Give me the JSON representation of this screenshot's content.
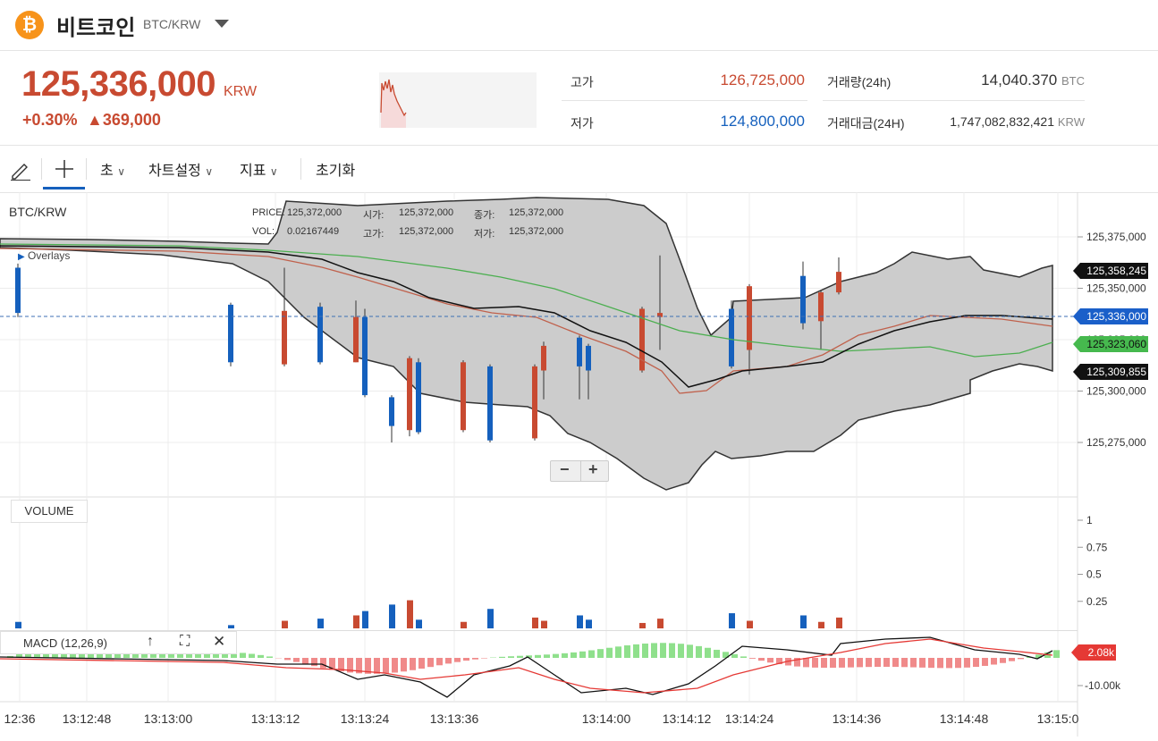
{
  "coin": {
    "icon": "bitcoin-icon",
    "logo_text": "₿",
    "name": "비트코인",
    "pair": "BTC/KRW"
  },
  "price": {
    "current": "125,336,000",
    "unit": "KRW",
    "change_pct": "+0.30%",
    "change_amount": "▲369,000"
  },
  "stats": {
    "high_label": "고가",
    "high_value": "126,725,000",
    "low_label": "저가",
    "low_value": "124,800,000",
    "volume_label": "거래량(24h)",
    "volume_value": "14,040.370",
    "volume_unit": "BTC",
    "turnover_label": "거래대금(24H)",
    "turnover_value": "1,747,082,832,421",
    "turnover_unit": "KRW"
  },
  "toolbar": {
    "draw_icon": "pencil-icon",
    "crosshair_icon": "crosshair-icon",
    "interval": "초",
    "chart_settings": "차트설정",
    "indicators": "지표",
    "reset": "초기화"
  },
  "colors": {
    "up": "#c84a31",
    "down": "#1560bd",
    "ma": "#4caf50",
    "bb_fill": "#cccccc"
  },
  "legend": {
    "pair": "BTC/KRW",
    "price_label": "PRICE:",
    "price_value": "125,372,000",
    "open_label": "시가:",
    "open_value": "125,372,000",
    "close_label": "종가:",
    "close_value": "125,372,000",
    "vol_label": "VOL:",
    "vol_value": "0.02167449",
    "high_label": "고가:",
    "high_value": "125,372,000",
    "low_label": "저가:",
    "low_value": "125,372,000",
    "overlays": "Overlays"
  },
  "zoom": {
    "minus": "−",
    "plus": "+"
  },
  "volume_panel": {
    "title": "VOLUME"
  },
  "macd_panel": {
    "title": "MACD (12,26,9)"
  },
  "badges": {
    "p1": "125,358,245",
    "p2": "125,336,000",
    "p3": "125,323,060",
    "p4": "125,309,855",
    "macd": "2.08k"
  },
  "chart_data": {
    "type": "candlestick",
    "price_axis": {
      "ticks": [
        "125,375,000",
        "125,350,000",
        "125,325,000",
        "125,300,000",
        "125,275,000"
      ],
      "tick_values": [
        125375000,
        125350000,
        125325000,
        125300000,
        125275000
      ]
    },
    "volume_axis": {
      "ticks": [
        "1",
        "0.75",
        "0.5",
        "0.25"
      ],
      "tick_values": [
        1,
        0.75,
        0.5,
        0.25
      ]
    },
    "macd_axis": {
      "ticks": [
        "-10.00k"
      ],
      "tick_values": [
        -10000
      ]
    },
    "time_ticks": [
      "12:36",
      "13:12:48",
      "13:13:00",
      "13:13:12",
      "13:13:24",
      "13:13:36",
      "13:14:00",
      "13:14:12",
      "13:14:24",
      "13:14:36",
      "13:14:48",
      "13:15:0"
    ],
    "candles": [
      {
        "o": 125360000,
        "c": 125338000,
        "h": 125362000,
        "l": 125336000,
        "v": 0.06,
        "d": 0
      },
      {
        "o": 125342000,
        "c": 125314000,
        "h": 125343000,
        "l": 125312000,
        "v": 0.03,
        "d": 0
      },
      {
        "o": 125313000,
        "c": 125339000,
        "h": 125360000,
        "l": 125312000,
        "v": 0.07,
        "d": 1
      },
      {
        "o": 125341000,
        "c": 125314000,
        "h": 125343000,
        "l": 125313000,
        "v": 0.09,
        "d": 0
      },
      {
        "o": 125314000,
        "c": 125336000,
        "h": 125344000,
        "l": 125314000,
        "v": 0.12,
        "d": 1
      },
      {
        "o": 125336000,
        "c": 125298000,
        "h": 125340000,
        "l": 125297000,
        "v": 0.16,
        "d": 0
      },
      {
        "o": 125297000,
        "c": 125283000,
        "h": 125298000,
        "l": 125275000,
        "v": 0.22,
        "d": 0
      },
      {
        "o": 125281000,
        "c": 125316000,
        "h": 125317000,
        "l": 125278000,
        "v": 0.26,
        "d": 1
      },
      {
        "o": 125314000,
        "c": 125280000,
        "h": 125316000,
        "l": 125279000,
        "v": 0.08,
        "d": 0
      },
      {
        "o": 125281000,
        "c": 125314000,
        "h": 125315000,
        "l": 125280000,
        "v": 0.06,
        "d": 1
      },
      {
        "o": 125312000,
        "c": 125276000,
        "h": 125313000,
        "l": 125275000,
        "v": 0.18,
        "d": 0
      },
      {
        "o": 125277000,
        "c": 125312000,
        "h": 125313000,
        "l": 125276000,
        "v": 0.1,
        "d": 1
      },
      {
        "o": 125310000,
        "c": 125322000,
        "h": 125324000,
        "l": 125296000,
        "v": 0.07,
        "d": 1
      },
      {
        "o": 125326000,
        "c": 125312000,
        "h": 125327000,
        "l": 125296000,
        "v": 0.12,
        "d": 0
      },
      {
        "o": 125322000,
        "c": 125310000,
        "h": 125323000,
        "l": 125296000,
        "v": 0.08,
        "d": 0
      },
      {
        "o": 125310000,
        "c": 125340000,
        "h": 125341000,
        "l": 125309000,
        "v": 0.05,
        "d": 1
      },
      {
        "o": 125338000,
        "c": 125336000,
        "h": 125366000,
        "l": 125320000,
        "v": 0.09,
        "d": 1
      },
      {
        "o": 125340000,
        "c": 125312000,
        "h": 125344000,
        "l": 125311000,
        "v": 0.14,
        "d": 0
      },
      {
        "o": 125320000,
        "c": 125351000,
        "h": 125352000,
        "l": 125308000,
        "v": 0.07,
        "d": 1
      },
      {
        "o": 125356000,
        "c": 125333000,
        "h": 125363000,
        "l": 125330000,
        "v": 0.12,
        "d": 0
      },
      {
        "o": 125334000,
        "c": 125348000,
        "h": 125349000,
        "l": 125320000,
        "v": 0.06,
        "d": 1
      },
      {
        "o": 125348000,
        "c": 125358000,
        "h": 125365000,
        "l": 125347000,
        "v": 0.1,
        "d": 1
      }
    ]
  }
}
